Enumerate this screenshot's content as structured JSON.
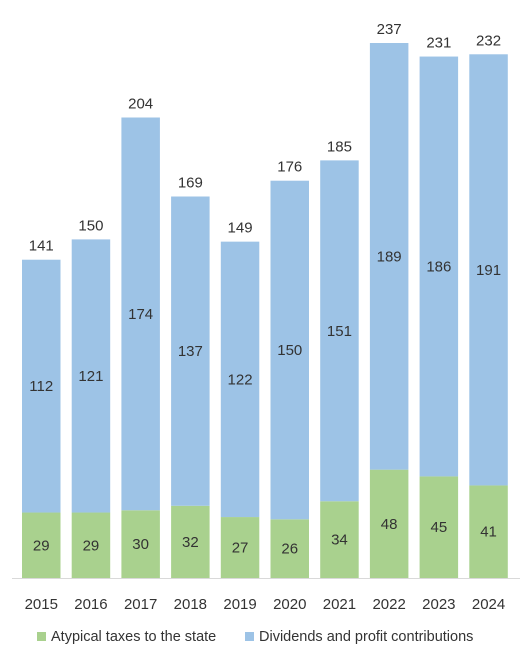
{
  "chart_data": {
    "type": "bar",
    "stacked": true,
    "categories": [
      "2015",
      "2016",
      "2017",
      "2018",
      "2019",
      "2020",
      "2021",
      "2022",
      "2023",
      "2024"
    ],
    "series": [
      {
        "name": "Atypical taxes to the state",
        "color": "#a9d18e",
        "values": [
          29,
          29,
          30,
          32,
          27,
          26,
          34,
          48,
          45,
          41
        ]
      },
      {
        "name": "Dividends and profit contributions",
        "color": "#9dc3e6",
        "values": [
          112,
          121,
          174,
          137,
          122,
          150,
          151,
          189,
          186,
          191
        ]
      }
    ],
    "totals": [
      141,
      150,
      204,
      169,
      149,
      176,
      185,
      237,
      231,
      232
    ],
    "ylim": [
      0,
      237
    ],
    "grid": false,
    "legend_position": "bottom"
  }
}
